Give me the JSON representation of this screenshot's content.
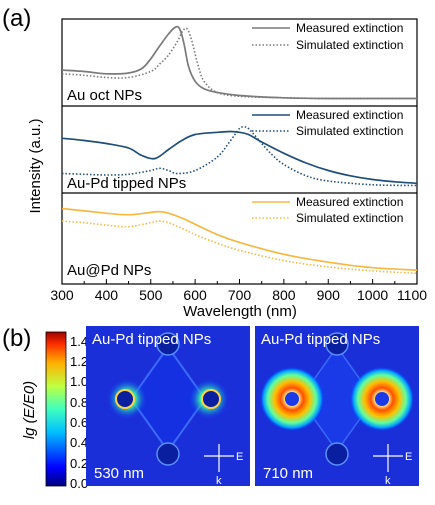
{
  "panel_a": {
    "letter": "(a)",
    "xlabel": "Wavelength (nm)",
    "ylabel": "Intensity (a.u.)",
    "xticks": [
      "300",
      "400",
      "500",
      "600",
      "700",
      "800",
      "900",
      "1000",
      "1100"
    ],
    "legend_measured": "Measured extinction",
    "legend_simulated": "Simulated extinction",
    "subplot_labels": [
      "Au oct NPs",
      "Au-Pd tipped NPs",
      "Au@Pd NPs"
    ],
    "colors": [
      "#7a7a7a",
      "#1f4e79",
      "#f5b942"
    ]
  },
  "panel_b": {
    "letter": "(b)",
    "colorbar_label": "lg (E/E0)",
    "colorbar_ticks": [
      "1.4",
      "1.2",
      "1.0",
      "0.8",
      "0.6",
      "0.4",
      "0.2",
      "0.0"
    ],
    "maps": [
      {
        "title": "Au-Pd tipped NPs",
        "wavelength": "530 nm"
      },
      {
        "title": "Au-Pd tipped NPs",
        "wavelength": "710 nm"
      }
    ],
    "E_label": "E",
    "k_label": "k"
  },
  "chart_data": [
    {
      "type": "line",
      "title": "Au oct NPs",
      "xlabel": "Wavelength (nm)",
      "ylabel": "Intensity (a.u.)",
      "xlim": [
        300,
        1100
      ],
      "ylim": [
        0,
        1
      ],
      "series": [
        {
          "name": "Measured extinction",
          "style": "solid",
          "color": "#7a7a7a",
          "x": [
            300,
            350,
            400,
            450,
            480,
            500,
            520,
            540,
            555,
            565,
            575,
            585,
            600,
            620,
            650,
            700,
            800,
            900,
            1000,
            1100
          ],
          "y": [
            0.4,
            0.38,
            0.35,
            0.36,
            0.42,
            0.55,
            0.72,
            0.88,
            0.97,
            0.95,
            0.75,
            0.45,
            0.25,
            0.15,
            0.1,
            0.06,
            0.03,
            0.02,
            0.02,
            0.02
          ]
        },
        {
          "name": "Simulated extinction",
          "style": "dotted",
          "color": "#7a7a7a",
          "x": [
            300,
            350,
            400,
            450,
            500,
            520,
            540,
            560,
            572,
            582,
            592,
            605,
            620,
            650,
            700,
            800,
            900,
            1000,
            1100
          ],
          "y": [
            0.35,
            0.33,
            0.3,
            0.3,
            0.38,
            0.48,
            0.6,
            0.78,
            0.92,
            0.95,
            0.8,
            0.5,
            0.25,
            0.1,
            0.05,
            0.03,
            0.02,
            0.02,
            0.02
          ]
        }
      ]
    },
    {
      "type": "line",
      "title": "Au-Pd tipped NPs",
      "xlabel": "Wavelength (nm)",
      "ylabel": "Intensity (a.u.)",
      "xlim": [
        300,
        1100
      ],
      "ylim": [
        0,
        1
      ],
      "series": [
        {
          "name": "Measured extinction",
          "style": "solid",
          "color": "#1f4e79",
          "x": [
            300,
            350,
            400,
            450,
            480,
            510,
            540,
            570,
            600,
            650,
            680,
            700,
            720,
            750,
            800,
            850,
            900,
            950,
            1000,
            1050,
            1100
          ],
          "y": [
            0.65,
            0.62,
            0.58,
            0.52,
            0.42,
            0.38,
            0.5,
            0.62,
            0.7,
            0.73,
            0.74,
            0.73,
            0.7,
            0.6,
            0.45,
            0.32,
            0.22,
            0.15,
            0.1,
            0.07,
            0.05
          ]
        },
        {
          "name": "Simulated extinction",
          "style": "dotted",
          "color": "#1f4e79",
          "x": [
            300,
            350,
            400,
            450,
            500,
            520,
            540,
            560,
            600,
            650,
            680,
            700,
            710,
            720,
            740,
            770,
            800,
            850,
            900,
            1000,
            1100
          ],
          "y": [
            0.18,
            0.17,
            0.16,
            0.17,
            0.22,
            0.25,
            0.22,
            0.18,
            0.22,
            0.4,
            0.62,
            0.78,
            0.8,
            0.78,
            0.65,
            0.45,
            0.3,
            0.15,
            0.08,
            0.03,
            0.02
          ]
        }
      ]
    },
    {
      "type": "line",
      "title": "Au@Pd NPs",
      "xlabel": "Wavelength (nm)",
      "ylabel": "Intensity (a.u.)",
      "xlim": [
        300,
        1100
      ],
      "ylim": [
        0,
        1
      ],
      "series": [
        {
          "name": "Measured extinction",
          "style": "solid",
          "color": "#f5b942",
          "x": [
            300,
            350,
            400,
            450,
            500,
            520,
            540,
            570,
            600,
            650,
            700,
            800,
            900,
            1000,
            1100
          ],
          "y": [
            0.88,
            0.85,
            0.82,
            0.8,
            0.83,
            0.84,
            0.82,
            0.76,
            0.68,
            0.55,
            0.45,
            0.3,
            0.2,
            0.13,
            0.1
          ]
        },
        {
          "name": "Simulated extinction",
          "style": "dotted",
          "color": "#f5b942",
          "x": [
            300,
            350,
            400,
            450,
            500,
            520,
            540,
            570,
            600,
            650,
            700,
            800,
            900,
            1000,
            1100
          ],
          "y": [
            0.72,
            0.7,
            0.67,
            0.65,
            0.7,
            0.72,
            0.7,
            0.63,
            0.55,
            0.44,
            0.35,
            0.22,
            0.14,
            0.09,
            0.06
          ]
        }
      ]
    }
  ]
}
